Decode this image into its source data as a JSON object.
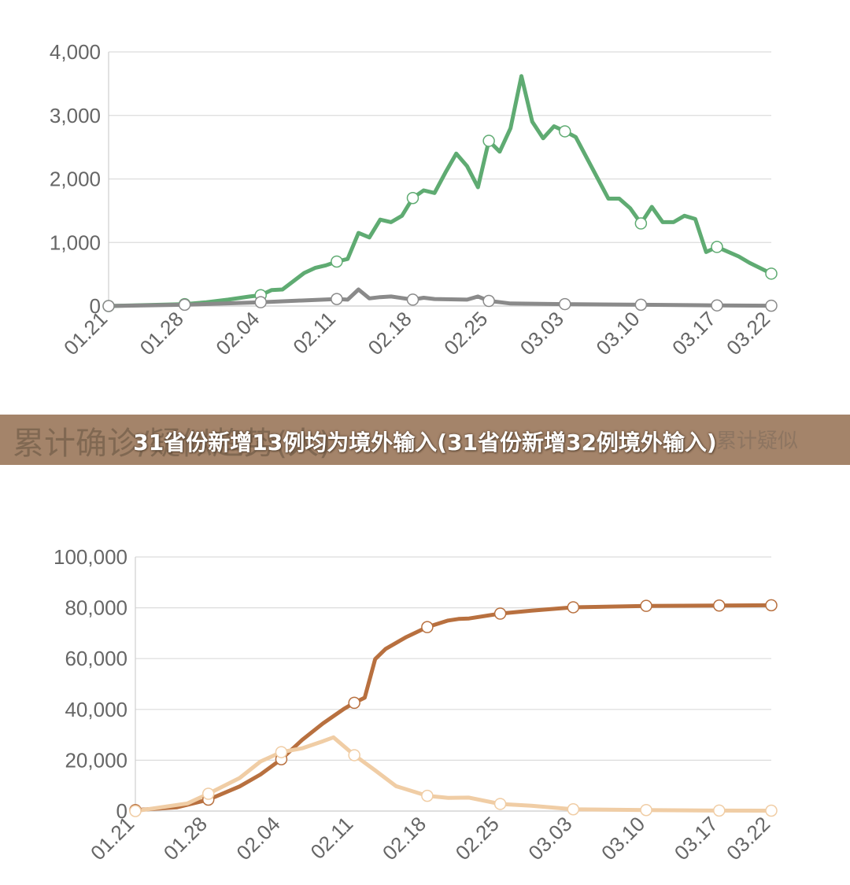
{
  "banner": {
    "title": "31省份新增13例均为境外输入(31省份新增32例境外输入)",
    "background_left_text": "累计确诊/疑似趋势(人)",
    "background_right_text": "累计疑似"
  },
  "chart_data": [
    {
      "type": "line",
      "title": "",
      "xlabel": "",
      "ylabel": "",
      "x_tick_labels": [
        "01.21",
        "01.28",
        "02.04",
        "02.11",
        "02.18",
        "02.25",
        "03.03",
        "03.10",
        "03.17",
        "03.22"
      ],
      "y_tick_labels": [
        "0",
        "1,000",
        "2,000",
        "3,000",
        "4,000"
      ],
      "ylim": [
        0,
        4000
      ],
      "grid": true,
      "series": [
        {
          "color": "#5fab72",
          "points": [
            [
              "01.21",
              0
            ],
            [
              "01.28",
              30
            ],
            [
              "01.30",
              60
            ],
            [
              "02.01",
              100
            ],
            [
              "02.03",
              150
            ],
            [
              "02.04",
              170
            ],
            [
              "02.05",
              250
            ],
            [
              "02.06",
              260
            ],
            [
              "02.08",
              520
            ],
            [
              "02.09",
              600
            ],
            [
              "02.10",
              640
            ],
            [
              "02.11",
              700
            ],
            [
              "02.12",
              740
            ],
            [
              "02.13",
              1150
            ],
            [
              "02.14",
              1080
            ],
            [
              "02.15",
              1360
            ],
            [
              "02.16",
              1320
            ],
            [
              "02.17",
              1420
            ],
            [
              "02.18",
              1700
            ],
            [
              "02.19",
              1820
            ],
            [
              "02.20",
              1780
            ],
            [
              "02.21",
              2100
            ],
            [
              "02.22",
              2400
            ],
            [
              "02.23",
              2200
            ],
            [
              "02.24",
              1870
            ],
            [
              "02.25",
              2600
            ],
            [
              "02.26",
              2430
            ],
            [
              "02.27",
              2800
            ],
            [
              "02.28",
              3620
            ],
            [
              "02.29",
              2900
            ],
            [
              "03.01",
              2640
            ],
            [
              "03.02",
              2830
            ],
            [
              "03.03",
              2750
            ],
            [
              "03.04",
              2660
            ],
            [
              "03.07",
              1690
            ],
            [
              "03.08",
              1690
            ],
            [
              "03.09",
              1540
            ],
            [
              "03.10",
              1300
            ],
            [
              "03.11",
              1560
            ],
            [
              "03.12",
              1320
            ],
            [
              "03.13",
              1320
            ],
            [
              "03.14",
              1420
            ],
            [
              "03.15",
              1370
            ],
            [
              "03.16",
              850
            ],
            [
              "03.17",
              930
            ],
            [
              "03.19",
              780
            ],
            [
              "03.20",
              680
            ],
            [
              "03.22",
              510
            ]
          ],
          "markers": [
            "01.21",
            "01.28",
            "02.04",
            "02.11",
            "02.18",
            "02.25",
            "03.03",
            "03.10",
            "03.17",
            "03.22"
          ]
        },
        {
          "color": "#8a8a8a",
          "points": [
            [
              "01.21",
              0
            ],
            [
              "01.28",
              20
            ],
            [
              "02.04",
              60
            ],
            [
              "02.11",
              110
            ],
            [
              "02.12",
              100
            ],
            [
              "02.13",
              260
            ],
            [
              "02.14",
              120
            ],
            [
              "02.15",
              140
            ],
            [
              "02.16",
              150
            ],
            [
              "02.18",
              100
            ],
            [
              "02.19",
              130
            ],
            [
              "02.20",
              110
            ],
            [
              "02.23",
              100
            ],
            [
              "02.24",
              150
            ],
            [
              "02.25",
              80
            ],
            [
              "02.27",
              40
            ],
            [
              "03.03",
              30
            ],
            [
              "03.10",
              20
            ],
            [
              "03.17",
              10
            ],
            [
              "03.22",
              5
            ]
          ],
          "markers": [
            "01.21",
            "01.28",
            "02.04",
            "02.11",
            "02.18",
            "02.25",
            "03.03",
            "03.10",
            "03.17",
            "03.22"
          ]
        }
      ]
    },
    {
      "type": "line",
      "title": "",
      "xlabel": "",
      "ylabel": "",
      "x_tick_labels": [
        "01.21",
        "01.28",
        "02.04",
        "02.11",
        "02.18",
        "02.25",
        "03.03",
        "03.10",
        "03.17",
        "03.22"
      ],
      "y_tick_labels": [
        "0",
        "20,000",
        "40,000",
        "60,000",
        "80,000",
        "100,000"
      ],
      "ylim": [
        0,
        100000
      ],
      "grid": true,
      "series": [
        {
          "color": "#b8703f",
          "points": [
            [
              "01.21",
              400
            ],
            [
              "01.25",
              1500
            ],
            [
              "01.28",
              4500
            ],
            [
              "01.31",
              9700
            ],
            [
              "02.02",
              14400
            ],
            [
              "02.04",
              20400
            ],
            [
              "02.06",
              28000
            ],
            [
              "02.08",
              34500
            ],
            [
              "02.10",
              40200
            ],
            [
              "02.11",
              42600
            ],
            [
              "02.12",
              44600
            ],
            [
              "02.13",
              59800
            ],
            [
              "02.14",
              63800
            ],
            [
              "02.16",
              68500
            ],
            [
              "02.18",
              72400
            ],
            [
              "02.20",
              75000
            ],
            [
              "02.21",
              75600
            ],
            [
              "02.22",
              75800
            ],
            [
              "02.25",
              77700
            ],
            [
              "02.28",
              78900
            ],
            [
              "03.03",
              80200
            ],
            [
              "03.10",
              80750
            ],
            [
              "03.17",
              80880
            ],
            [
              "03.22",
              81000
            ]
          ],
          "markers": [
            "01.21",
            "01.28",
            "02.04",
            "02.11",
            "02.18",
            "02.25",
            "03.03",
            "03.10",
            "03.17",
            "03.22"
          ]
        },
        {
          "color": "#f0cda5",
          "points": [
            [
              "01.21",
              0
            ],
            [
              "01.26",
              3000
            ],
            [
              "01.28",
              6800
            ],
            [
              "01.31",
              13000
            ],
            [
              "02.02",
              19500
            ],
            [
              "02.04",
              23200
            ],
            [
              "02.06",
              24700
            ],
            [
              "02.08",
              27500
            ],
            [
              "02.09",
              29000
            ],
            [
              "02.11",
              22000
            ],
            [
              "02.13",
              16000
            ],
            [
              "02.15",
              9800
            ],
            [
              "02.18",
              6000
            ],
            [
              "02.20",
              5200
            ],
            [
              "02.22",
              5300
            ],
            [
              "02.25",
              2800
            ],
            [
              "02.28",
              2100
            ],
            [
              "03.03",
              700
            ],
            [
              "03.10",
              400
            ],
            [
              "03.17",
              200
            ],
            [
              "03.22",
              150
            ]
          ],
          "markers": [
            "01.21",
            "01.28",
            "02.04",
            "02.11",
            "02.18",
            "02.25",
            "03.03",
            "03.10",
            "03.17",
            "03.22"
          ]
        }
      ]
    }
  ]
}
